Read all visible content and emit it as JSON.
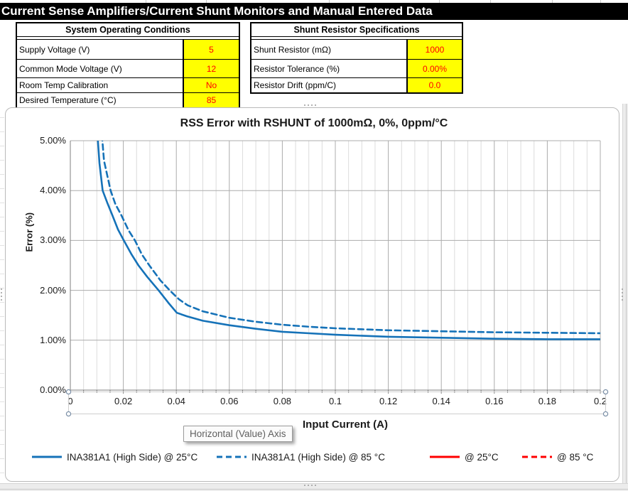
{
  "app": {
    "title": "Current Sense Amplifiers/Current Shunt Monitors and Manual Entered Data"
  },
  "tables": {
    "system": {
      "title": "System Operating Conditions",
      "rows": [
        {
          "label": "Supply Voltage (V)",
          "value": "5"
        },
        {
          "label": "Common Mode Voltage (V)",
          "value": "12"
        },
        {
          "label": "Room Temp Calibration",
          "value": "No"
        },
        {
          "label": "Desired Temperature (°C)",
          "value": "85"
        }
      ]
    },
    "shunt": {
      "title": "Shunt Resistor Specifications",
      "rows": [
        {
          "label": "Shunt Resistor (mΩ)",
          "value": "1000"
        },
        {
          "label": "Resistor Tolerance (%)",
          "value": "0.00%"
        },
        {
          "label": "Resistor Drift (ppm/C)",
          "value": "0.0"
        }
      ]
    }
  },
  "tooltip": {
    "text": "Horizontal (Value) Axis"
  },
  "colors": {
    "series_blue": "#1572b8",
    "series_red": "#ff0000",
    "input_cell_bg": "#ffff00",
    "input_cell_text": "#ff0000",
    "banner_bg": "#000000",
    "banner_text": "#ffffff",
    "grid_major": "#acacac",
    "grid_minor": "#dcdcdc",
    "axis_line": "#7f7f7f"
  },
  "chart_data": {
    "type": "line",
    "title": "RSS Error with RSHUNT of 1000mΩ, 0%, 0ppm/°C",
    "xlabel": "Input Current (A)",
    "ylabel": "Error (%)",
    "xlim": [
      0,
      0.2
    ],
    "ylim": [
      0,
      5
    ],
    "x_ticks": [
      "0",
      "0.02",
      "0.04",
      "0.06",
      "0.08",
      "0.1",
      "0.12",
      "0.14",
      "0.16",
      "0.18",
      "0.2"
    ],
    "y_ticks": [
      "0.00%",
      "1.00%",
      "2.00%",
      "3.00%",
      "4.00%",
      "5.00%"
    ],
    "x_minor_step": 0.005,
    "x_major_step": 0.02,
    "y_major_step": 1,
    "grid": "vertical major+minor, horizontal major",
    "legend_position": "bottom",
    "series": [
      {
        "name": "INA381A1 (High Side) @ 25°C",
        "color": "#1572b8",
        "style": "solid",
        "points": [
          [
            0.0102,
            5.3
          ],
          [
            0.0104,
            5.0
          ],
          [
            0.011,
            4.55
          ],
          [
            0.0122,
            4.0
          ],
          [
            0.014,
            3.75
          ],
          [
            0.0159,
            3.5
          ],
          [
            0.018,
            3.22
          ],
          [
            0.0202,
            3.0
          ],
          [
            0.023,
            2.73
          ],
          [
            0.0257,
            2.5
          ],
          [
            0.029,
            2.27
          ],
          [
            0.0333,
            2.0
          ],
          [
            0.037,
            1.75
          ],
          [
            0.0402,
            1.55
          ],
          [
            0.044,
            1.48
          ],
          [
            0.05,
            1.39
          ],
          [
            0.06,
            1.3
          ],
          [
            0.07,
            1.23
          ],
          [
            0.08,
            1.17
          ],
          [
            0.09,
            1.14
          ],
          [
            0.1,
            1.11
          ],
          [
            0.12,
            1.07
          ],
          [
            0.14,
            1.05
          ],
          [
            0.16,
            1.03
          ],
          [
            0.18,
            1.02
          ],
          [
            0.2,
            1.02
          ]
        ]
      },
      {
        "name": "INA381A1 (High Side) @ 85 °C",
        "color": "#1572b8",
        "style": "dashed",
        "points": [
          [
            0.0119,
            5.3
          ],
          [
            0.0121,
            5.0
          ],
          [
            0.0127,
            4.6
          ],
          [
            0.0152,
            4.0
          ],
          [
            0.017,
            3.73
          ],
          [
            0.0193,
            3.5
          ],
          [
            0.022,
            3.2
          ],
          [
            0.0244,
            3.0
          ],
          [
            0.027,
            2.72
          ],
          [
            0.0298,
            2.5
          ],
          [
            0.034,
            2.2
          ],
          [
            0.0375,
            2.0
          ],
          [
            0.041,
            1.82
          ],
          [
            0.0443,
            1.7
          ],
          [
            0.05,
            1.58
          ],
          [
            0.06,
            1.45
          ],
          [
            0.07,
            1.37
          ],
          [
            0.08,
            1.31
          ],
          [
            0.09,
            1.27
          ],
          [
            0.1,
            1.24
          ],
          [
            0.12,
            1.2
          ],
          [
            0.14,
            1.18
          ],
          [
            0.16,
            1.16
          ],
          [
            0.18,
            1.15
          ],
          [
            0.2,
            1.14
          ]
        ]
      },
      {
        "name": "@ 25°C",
        "color": "#ff0000",
        "style": "solid",
        "points": []
      },
      {
        "name": "@ 85 °C",
        "color": "#ff0000",
        "style": "dashed",
        "points": []
      }
    ]
  }
}
